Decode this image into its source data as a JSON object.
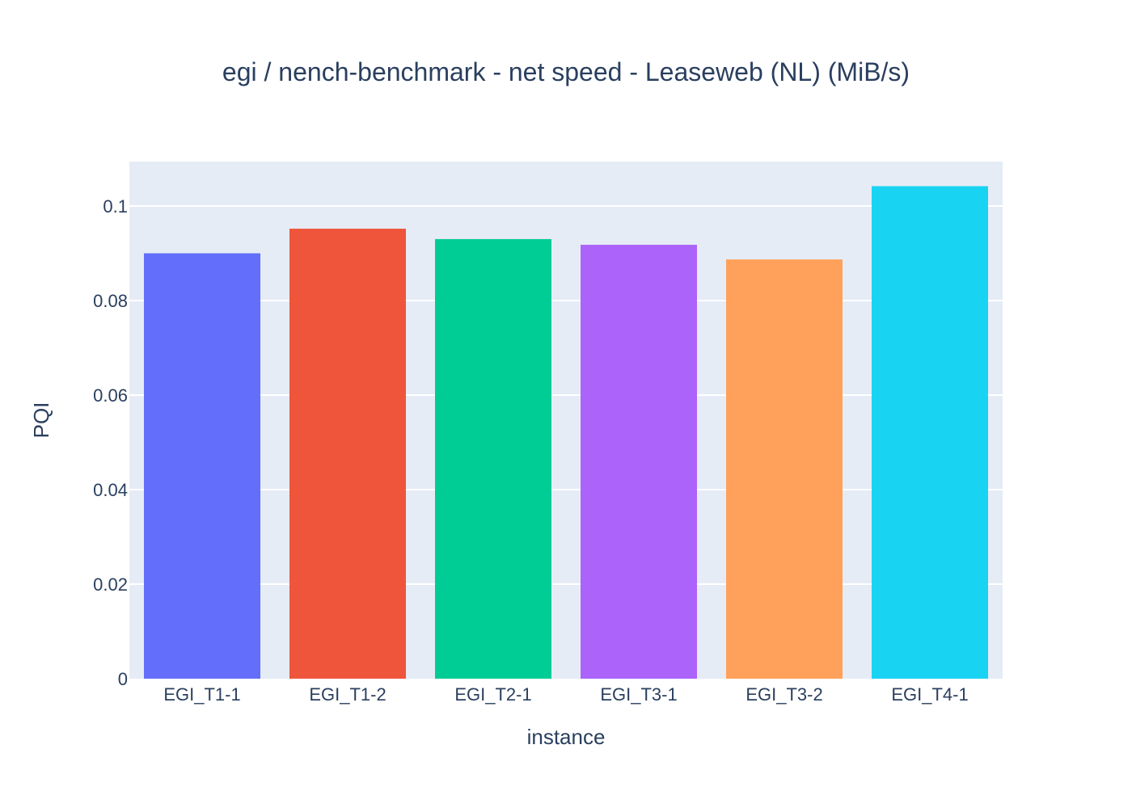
{
  "chart_data": {
    "type": "bar",
    "title": "egi / nench-benchmark - net speed - Leaseweb (NL) (MiB/s)",
    "xlabel": "instance",
    "ylabel": "PQI",
    "categories": [
      "EGI_T1-1",
      "EGI_T1-2",
      "EGI_T2-1",
      "EGI_T3-1",
      "EGI_T3-2",
      "EGI_T4-1"
    ],
    "values": [
      0.09,
      0.0952,
      0.093,
      0.0918,
      0.0887,
      0.1042
    ],
    "colors": [
      "#636efa",
      "#ef553b",
      "#00cc96",
      "#ab63fa",
      "#ffa15a",
      "#19d3f3"
    ],
    "ylim": [
      0,
      0.1094
    ],
    "yticks": [
      0,
      0.02,
      0.04,
      0.06,
      0.08,
      0.1
    ],
    "ytick_labels": [
      "0",
      "0.02",
      "0.04",
      "0.06",
      "0.08",
      "0.1"
    ],
    "grid": true,
    "legend": "none",
    "plot_background": "#e5ecf6",
    "grid_color": "#ffffff"
  }
}
